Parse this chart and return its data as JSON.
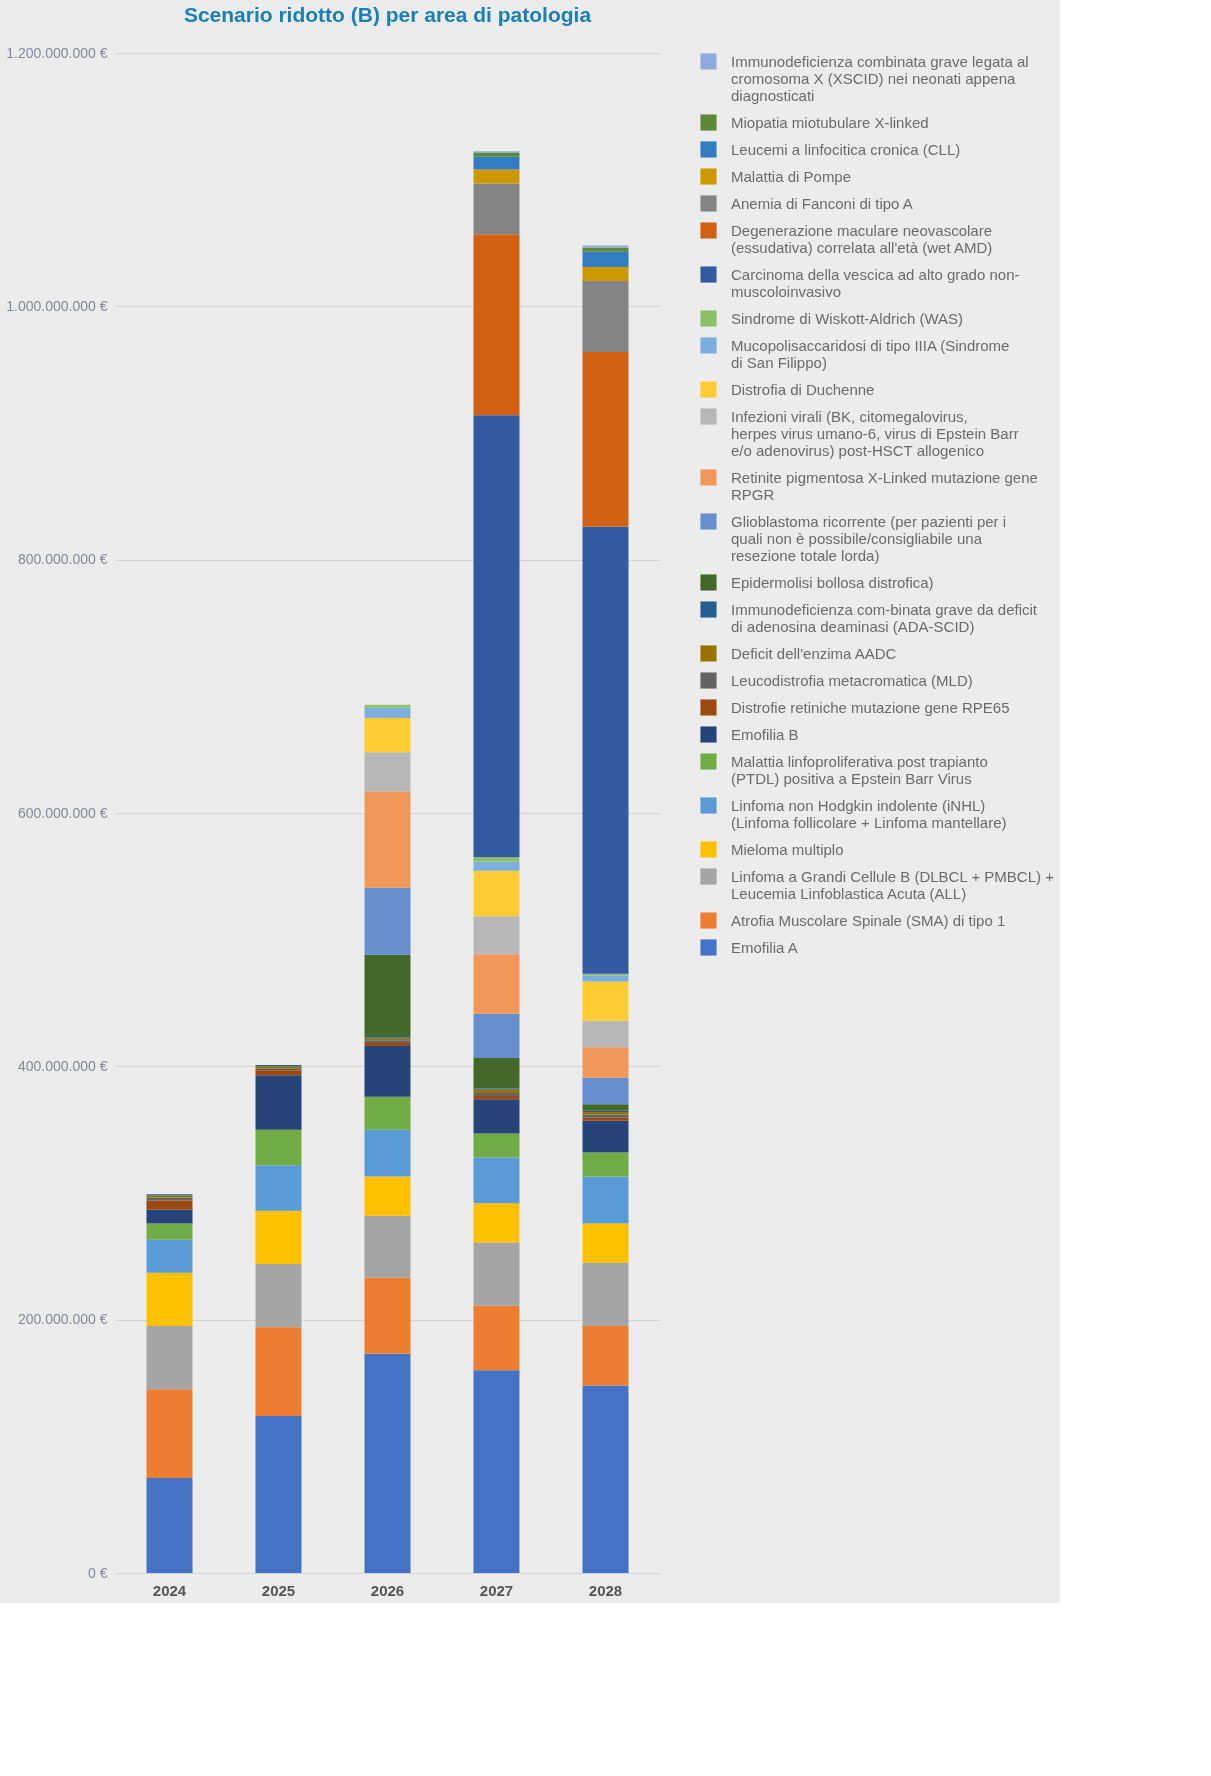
{
  "chart_data": {
    "type": "bar",
    "title": "Scenario ridotto (B) per area di patologia",
    "stacked": true,
    "categories": [
      "2024",
      "2025",
      "2026",
      "2027",
      "2028"
    ],
    "ylim": [
      0,
      1200000000
    ],
    "yticks": [
      {
        "value": 0,
        "label": "0 €"
      },
      {
        "value": 200000000,
        "label": "200.000.000 €"
      },
      {
        "value": 400000000,
        "label": "400.000.000 €"
      },
      {
        "value": 600000000,
        "label": "600.000.000 €"
      },
      {
        "value": 800000000,
        "label": "800.000.000 €"
      },
      {
        "value": 1000000000,
        "label": "1.000.000.000 €"
      },
      {
        "value": 1200000000,
        "label": "1.200.000.000 €"
      }
    ],
    "grid": "y",
    "legend": "right",
    "series": [
      {
        "name": "Emofilia A",
        "color": "#4472c4",
        "values": [
          75000000,
          124000000,
          173000000,
          160000000,
          148000000
        ]
      },
      {
        "name": "Atrofia Muscolare Spinale (SMA) di tipo 1",
        "color": "#ed7d31",
        "values": [
          70000000,
          70000000,
          60000000,
          51000000,
          47000000
        ]
      },
      {
        "name": "Linfoma a Grandi Cellule B (DLBCL + PMBCL) + Leucemia Linfoblastica Acuta (ALL)",
        "color": "#a5a5a5",
        "values": [
          50000000,
          50000000,
          49000000,
          50000000,
          50000000
        ]
      },
      {
        "name": "Mieloma multiplo",
        "color": "#ffc000",
        "values": [
          42000000,
          42000000,
          31000000,
          31000000,
          31000000
        ]
      },
      {
        "name": "Linfoma non Hodgkin indolente (iNHL) (Linfoma follicolare + Linfoma mantellare)",
        "color": "#5b9bd5",
        "values": [
          26000000,
          36000000,
          37000000,
          36000000,
          37000000
        ]
      },
      {
        "name": "Malattia linfoproliferativa post trapianto (PTDL) positiva a Epstein Barr Virus",
        "color": "#70ad47",
        "values": [
          13000000,
          28000000,
          26000000,
          19000000,
          19000000
        ]
      },
      {
        "name": "Emofilia B",
        "color": "#264478",
        "values": [
          11000000,
          43000000,
          40000000,
          27000000,
          25000000
        ]
      },
      {
        "name": "Distrofie retiniche mutazione gene RPE65",
        "color": "#9e480e",
        "values": [
          7000000,
          4000000,
          2500000,
          2500000,
          2500000
        ]
      },
      {
        "name": "Leucodistrofia metacromatica (MLD)",
        "color": "#636363",
        "values": [
          2500000,
          1500000,
          2000000,
          2500000,
          2500000
        ]
      },
      {
        "name": "Deficit dell'enzima AADC",
        "color": "#997300",
        "values": [
          1500000,
          1500000,
          1500000,
          2500000,
          2000000
        ]
      },
      {
        "name": "Immunodeficienza com-binata grave da deficit di adenosina deaminasi (ADA-SCID)",
        "color": "#255e91",
        "values": [
          1000000,
          1000000,
          1000000,
          1000000,
          1000000
        ]
      },
      {
        "name": "Epidermolisi bollosa distrofica)",
        "color": "#43682b",
        "values": [
          null,
          null,
          65000000,
          24000000,
          5000000
        ]
      },
      {
        "name": "Glioblastoma ricorrente (per pazienti per i quali non  è possibile/consigliabile una resezione totale lorda)",
        "color": "#698ed0",
        "values": [
          null,
          null,
          53000000,
          35000000,
          21000000
        ]
      },
      {
        "name": "Retinite pigmentosa X-Linked mutazione gene RPGR",
        "color": "#f1975a",
        "values": [
          null,
          null,
          76000000,
          47000000,
          24000000
        ]
      },
      {
        "name": "Infezioni virali (BK, citomegalovirus, herpes virus umano-6, virus di Epstein Barr e/o adenovirus) post-HSCT allogenico",
        "color": "#b7b7b7",
        "values": [
          null,
          null,
          31000000,
          30000000,
          21000000
        ]
      },
      {
        "name": "Distrofia di Duchenne",
        "color": "#ffcd33",
        "values": [
          null,
          null,
          27000000,
          36000000,
          31000000
        ]
      },
      {
        "name": "Mucopolisaccaridosi di tipo IIIA (Sindrome di San Filippo)",
        "color": "#7cafdd",
        "values": [
          null,
          null,
          8000000,
          7000000,
          5000000
        ]
      },
      {
        "name": "Sindrome di Wiskott-Aldrich (WAS)",
        "color": "#8cc168",
        "values": [
          null,
          null,
          2500000,
          3500000,
          1000000
        ]
      },
      {
        "name": "Carcinoma della vescica ad alto grado non-muscoloinvasivo",
        "color": "#335aa1",
        "values": [
          null,
          null,
          null,
          349000000,
          353000000
        ]
      },
      {
        "name": "Degenerazione maculare neovascolare (essudativa) correlata all'età (wet AMD)",
        "color": "#d26012",
        "values": [
          null,
          null,
          null,
          143000000,
          138000000
        ]
      },
      {
        "name": "Anemia di Fanconi di tipo A",
        "color": "#848484",
        "values": [
          null,
          null,
          null,
          40000000,
          56000000
        ]
      },
      {
        "name": "Malattia di Pompe",
        "color": "#cc9a00",
        "values": [
          null,
          null,
          null,
          11000000,
          11000000
        ]
      },
      {
        "name": "Leucemi a linfocitica cronica (CLL)",
        "color": "#327dc2",
        "values": [
          null,
          null,
          null,
          10000000,
          12000000
        ]
      },
      {
        "name": "Miopatia miotubulare X-linked",
        "color": "#5a8a39",
        "values": [
          null,
          null,
          null,
          3500000,
          3500000
        ]
      },
      {
        "name": "Immunodeficienza combinata grave legata al cromosoma X (XSCID) nei neonati appena diagnosticati",
        "color": "#8faadc",
        "values": [
          null,
          null,
          null,
          1000000,
          1500000
        ]
      }
    ]
  }
}
